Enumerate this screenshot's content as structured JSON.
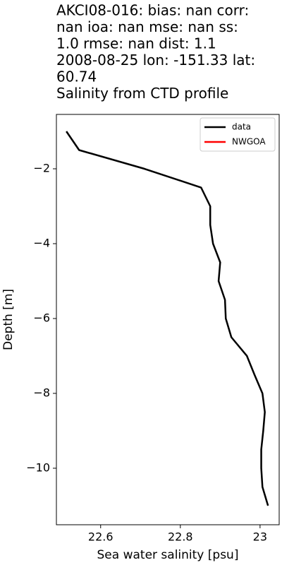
{
  "chart_data": {
    "type": "line",
    "title": [
      "AKCI08-016: bias: nan  corr:",
      "nan  ioa: nan  mse: nan  ss:",
      "1.0  rmse: nan  dist: 1.1",
      "2008-08-25 lon: -151.33 lat:",
      "60.74",
      "Salinity from CTD profile"
    ],
    "x_label": "Sea water salinity [psu]",
    "y_label": "Depth [m]",
    "x": [
      22.514,
      22.546,
      22.71,
      22.852,
      22.875,
      22.875,
      22.882,
      22.9,
      22.896,
      22.912,
      22.914,
      22.928,
      22.967,
      22.986,
      23.006,
      23.012,
      23.008,
      23.003,
      23.003,
      23.006,
      23.02
    ],
    "series": [
      {
        "name": "data",
        "color": "#000000",
        "values": [
          -1.0,
          -1.5,
          -2.0,
          -2.5,
          -3.0,
          -3.5,
          -4.0,
          -4.5,
          -5.0,
          -5.5,
          -6.0,
          -6.5,
          -7.0,
          -7.5,
          -8.0,
          -8.5,
          -9.0,
          -9.5,
          -10.0,
          -10.5,
          -11.0
        ]
      },
      {
        "name": "NWGOA",
        "color": "#ff0000",
        "values": [
          null,
          null,
          null,
          null,
          null,
          null,
          null,
          null,
          null,
          null,
          null,
          null,
          null,
          null,
          null,
          null,
          null,
          null,
          null,
          null,
          null
        ]
      }
    ],
    "xlim": [
      22.489,
      23.048
    ],
    "ylim": [
      -11.51,
      -0.547
    ],
    "xticks": [
      22.6,
      22.8,
      23.0
    ],
    "yticks": [
      {
        "value": -2,
        "label": "−2"
      },
      {
        "value": -4,
        "label": "−4"
      },
      {
        "value": -6,
        "label": "−6"
      },
      {
        "value": -8,
        "label": "−8"
      },
      {
        "value": -10,
        "label": "−10"
      }
    ],
    "legend": "upper right"
  }
}
